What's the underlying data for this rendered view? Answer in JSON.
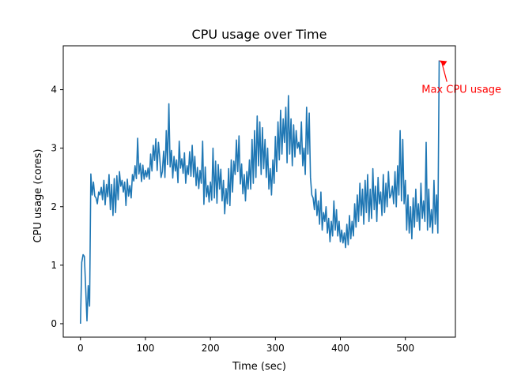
{
  "chart_data": {
    "type": "line",
    "title": "CPU usage over Time",
    "xlabel": "Time (sec)",
    "ylabel": "CPU usage (cores)",
    "xlim": [
      -26.5,
      577
    ],
    "ylim": [
      -0.23,
      4.75
    ],
    "xticks": [
      0,
      100,
      200,
      300,
      400,
      500
    ],
    "yticks": [
      0,
      1,
      2,
      3,
      4
    ],
    "grid": false,
    "line_color": "#1f77b4",
    "annotation": {
      "text": "Max CPU usage",
      "color": "#ff0000",
      "point": [
        552,
        4.5
      ],
      "text_position": [
        525,
        4.0
      ]
    },
    "series": [
      {
        "x": [
          0,
          2,
          4,
          6,
          8,
          10,
          12,
          14,
          16,
          18,
          20,
          22,
          24,
          26,
          28,
          30,
          32,
          34,
          36,
          38,
          40,
          42,
          44,
          46,
          48,
          50,
          52,
          54,
          56,
          58,
          60,
          62,
          64,
          66,
          68,
          70,
          72,
          74,
          76,
          78,
          80,
          82,
          84,
          86,
          88,
          90,
          92,
          94,
          96,
          98,
          100,
          102,
          104,
          106,
          108,
          110,
          112,
          114,
          116,
          118,
          120,
          122,
          124,
          126,
          128,
          130,
          132,
          134,
          136,
          138,
          140,
          142,
          144,
          146,
          148,
          150,
          152,
          154,
          156,
          158,
          160,
          162,
          164,
          166,
          168,
          170,
          172,
          174,
          176,
          178,
          180,
          182,
          184,
          186,
          188,
          190,
          192,
          194,
          196,
          198,
          200,
          202,
          204,
          206,
          208,
          210,
          212,
          214,
          216,
          218,
          220,
          222,
          224,
          226,
          228,
          230,
          232,
          234,
          236,
          238,
          240,
          242,
          244,
          246,
          248,
          250,
          252,
          254,
          256,
          258,
          260,
          262,
          264,
          266,
          268,
          270,
          272,
          274,
          276,
          278,
          280,
          282,
          284,
          286,
          288,
          290,
          292,
          294,
          296,
          298,
          300,
          302,
          304,
          306,
          308,
          310,
          312,
          314,
          316,
          318,
          320,
          322,
          324,
          326,
          328,
          330,
          332,
          334,
          336,
          338,
          340,
          342,
          344,
          346,
          348,
          350,
          352,
          354,
          356,
          358,
          360,
          362,
          364,
          366,
          368,
          370,
          372,
          374,
          376,
          378,
          380,
          382,
          384,
          386,
          388,
          390,
          392,
          394,
          396,
          398,
          400,
          402,
          404,
          406,
          408,
          410,
          412,
          414,
          416,
          418,
          420,
          422,
          424,
          426,
          428,
          430,
          432,
          434,
          436,
          438,
          440,
          442,
          444,
          446,
          448,
          450,
          452,
          454,
          456,
          458,
          460,
          462,
          464,
          466,
          468,
          470,
          472,
          474,
          476,
          478,
          480,
          482,
          484,
          486,
          488,
          490,
          492,
          494,
          496,
          498,
          500,
          502,
          504,
          506,
          508,
          510,
          512,
          514,
          516,
          518,
          520,
          522,
          524,
          526,
          528,
          530,
          532,
          534,
          536,
          538,
          540,
          542,
          544,
          546,
          548,
          550,
          552
        ],
        "values": [
          0.0,
          1.05,
          1.18,
          1.15,
          0.6,
          0.05,
          0.65,
          0.3,
          2.56,
          2.2,
          2.42,
          2.18,
          2.15,
          2.05,
          2.25,
          2.2,
          2.33,
          2.12,
          2.45,
          2.03,
          2.38,
          2.17,
          2.55,
          1.95,
          2.38,
          1.85,
          2.48,
          1.9,
          2.53,
          2.12,
          2.6,
          2.35,
          2.45,
          2.25,
          2.42,
          2.02,
          2.47,
          2.18,
          2.36,
          2.15,
          2.55,
          2.44,
          2.7,
          2.48,
          3.17,
          2.56,
          2.74,
          2.43,
          2.71,
          2.47,
          2.62,
          2.51,
          2.66,
          2.47,
          2.9,
          2.61,
          3.05,
          2.79,
          3.16,
          2.62,
          3.1,
          2.85,
          2.5,
          2.6,
          2.95,
          2.5,
          3.3,
          2.72,
          3.76,
          2.68,
          2.96,
          2.49,
          2.86,
          2.61,
          2.8,
          2.41,
          3.12,
          2.66,
          2.82,
          2.57,
          2.92,
          2.4,
          2.7,
          2.55,
          2.94,
          2.52,
          3.05,
          2.51,
          2.86,
          2.36,
          2.67,
          2.31,
          2.62,
          2.4,
          3.12,
          2.04,
          2.68,
          2.17,
          2.36,
          2.08,
          2.42,
          2.11,
          3.0,
          2.15,
          2.78,
          2.06,
          2.72,
          2.3,
          2.64,
          2.1,
          2.45,
          1.88,
          2.31,
          2.05,
          2.65,
          2.02,
          2.8,
          2.25,
          2.78,
          2.55,
          3.14,
          2.6,
          3.21,
          2.39,
          2.73,
          2.22,
          2.55,
          2.1,
          2.6,
          2.3,
          2.8,
          2.3,
          3.15,
          2.4,
          3.3,
          2.5,
          3.55,
          2.7,
          3.45,
          2.55,
          3.35,
          2.65,
          3.15,
          2.5,
          3.0,
          2.3,
          2.65,
          2.2,
          2.8,
          2.4,
          3.2,
          2.6,
          3.45,
          2.8,
          3.65,
          2.9,
          3.5,
          3.1,
          3.7,
          2.75,
          3.9,
          2.9,
          3.5,
          2.7,
          3.4,
          2.85,
          3.3,
          3.0,
          3.1,
          2.9,
          3.45,
          2.7,
          3.0,
          2.55,
          3.7,
          2.9,
          3.6,
          2.5,
          2.2,
          2.15,
          1.95,
          2.3,
          1.85,
          2.1,
          1.7,
          2.25,
          1.6,
          1.9,
          1.75,
          2.0,
          1.55,
          1.8,
          1.4,
          1.75,
          1.5,
          2.1,
          1.6,
          1.95,
          1.5,
          1.75,
          1.4,
          1.6,
          1.38,
          1.55,
          1.3,
          1.7,
          1.35,
          1.85,
          1.45,
          1.75,
          1.5,
          2.05,
          1.65,
          2.2,
          1.75,
          2.4,
          1.85,
          2.3,
          1.7,
          2.45,
          1.9,
          2.55,
          1.75,
          2.3,
          1.8,
          2.65,
          1.95,
          2.35,
          1.75,
          2.5,
          2.05,
          2.25,
          1.85,
          2.55,
          1.9,
          2.4,
          2.0,
          2.6,
          2.15,
          2.2,
          2.35,
          2.05,
          2.6,
          2.0,
          2.7,
          2.2,
          3.3,
          2.1,
          3.15,
          2.05,
          2.45,
          1.6,
          2.2,
          1.55,
          2.0,
          1.45,
          2.15,
          1.65,
          2.3,
          1.75,
          2.05,
          1.6,
          2.4,
          1.8,
          2.1,
          1.75,
          3.1,
          1.6,
          2.3,
          1.65,
          1.95,
          1.55,
          2.45,
          1.7,
          2.2,
          1.55,
          4.5
        ]
      }
    ]
  }
}
